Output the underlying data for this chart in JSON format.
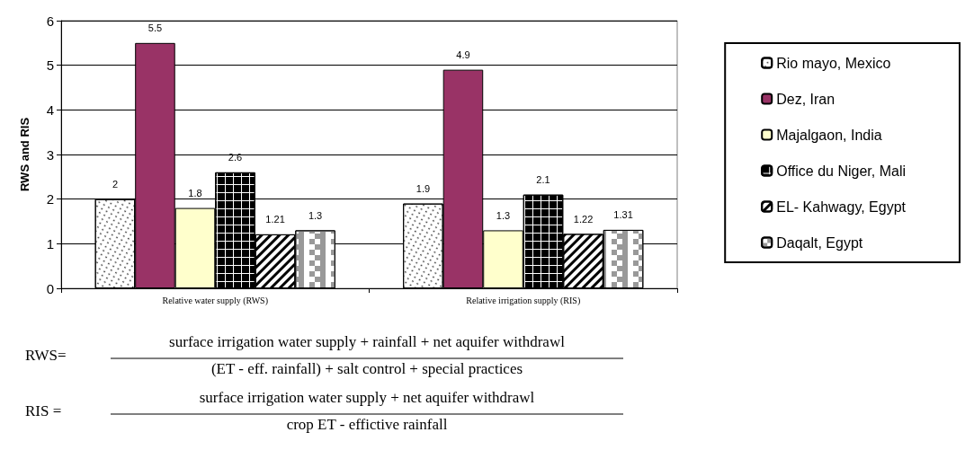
{
  "chart_data": {
    "type": "bar",
    "ylabel": "RWS and RIS",
    "categories": [
      "Relative water supply (RWS)",
      "Relative irrigation supply (RIS)"
    ],
    "series": [
      {
        "name": "Rio mayo, Mexico",
        "color": "#ffffff",
        "values": [
          2,
          1.9
        ]
      },
      {
        "name": "Dez, Iran",
        "color": "#993366",
        "values": [
          5.5,
          4.9
        ]
      },
      {
        "name": "Majalgaon, India",
        "color": "#ffffcc",
        "values": [
          1.8,
          1.3
        ]
      },
      {
        "name": "Office du Niger, Mali",
        "color": "#ffffff",
        "values": [
          2.6,
          2.1
        ]
      },
      {
        "name": "EL- Kahwagy, Egypt",
        "color": "#ffffff",
        "values": [
          1.21,
          1.22
        ]
      },
      {
        "name": "Daqalt, Egypt",
        "color": "#ffffff",
        "values": [
          1.3,
          1.31
        ]
      }
    ],
    "ylim": [
      0,
      6
    ],
    "yticks": [
      0,
      1,
      2,
      3,
      4,
      5,
      6
    ],
    "grid": "y",
    "legend": "right",
    "data_labels": true,
    "annotations": [
      "RWS=",
      "surface irrigation water supply + rainfall + net aquifer withdrawl",
      "(ET - eff. rainfall) + salt control + special practices",
      "RIS =",
      "surface irrigation water supply + net aquifer withdrawl",
      "crop ET - effictive rainfall"
    ]
  }
}
